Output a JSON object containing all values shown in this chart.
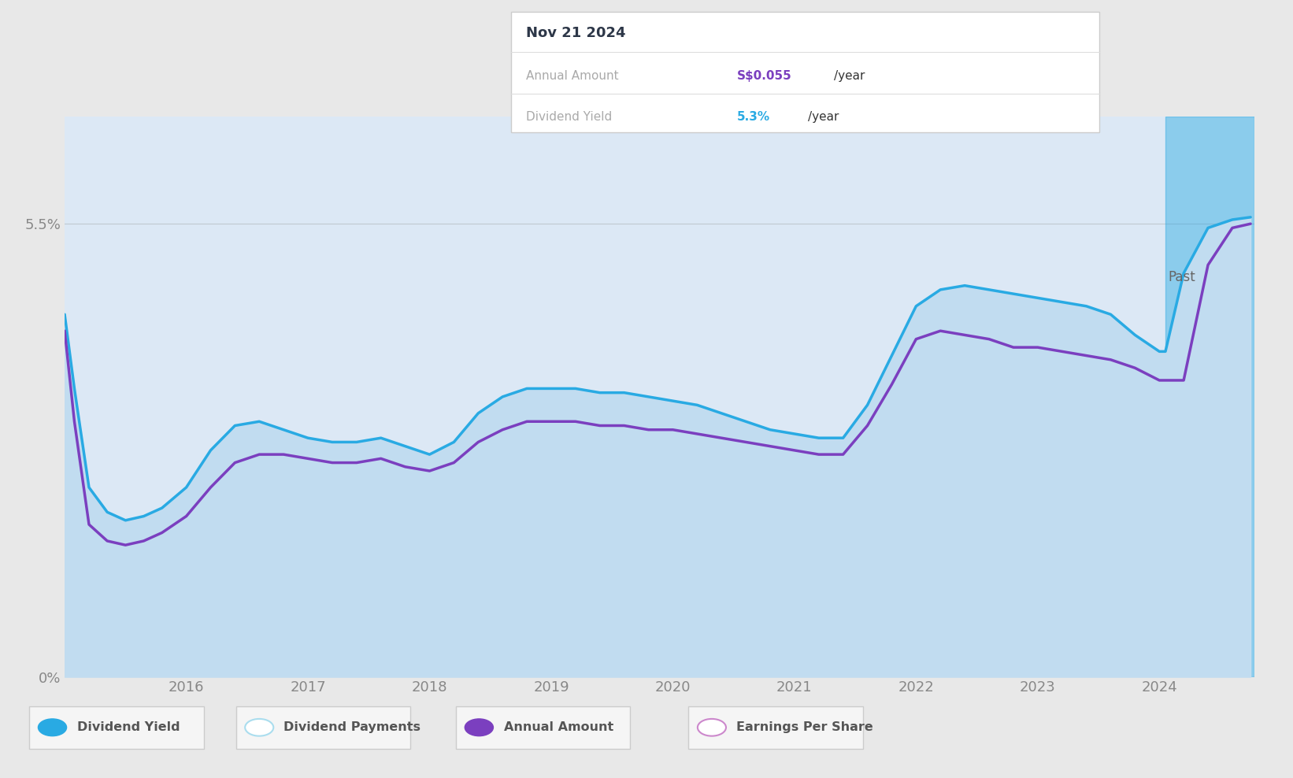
{
  "background_color": "#e8e8e8",
  "plot_bg_color": "#dce8f5",
  "ylim": [
    0,
    6.8
  ],
  "shaded_region_start": 2024.05,
  "past_label": "Past",
  "tooltip": {
    "date": "Nov 21 2024",
    "annual_amount_label": "Annual Amount",
    "annual_amount_value": "S$0.055",
    "annual_amount_suffix": "/year",
    "dividend_yield_label": "Dividend Yield",
    "dividend_yield_value": "5.3%",
    "dividend_yield_suffix": "/year",
    "annual_amount_color": "#7b3fbf",
    "dividend_yield_color": "#29aae3"
  },
  "dividend_yield_x": [
    2015.0,
    2015.08,
    2015.2,
    2015.35,
    2015.5,
    2015.65,
    2015.8,
    2016.0,
    2016.2,
    2016.4,
    2016.6,
    2016.8,
    2017.0,
    2017.2,
    2017.4,
    2017.6,
    2017.8,
    2018.0,
    2018.2,
    2018.4,
    2018.6,
    2018.8,
    2019.0,
    2019.2,
    2019.4,
    2019.6,
    2019.8,
    2020.0,
    2020.2,
    2020.4,
    2020.6,
    2020.8,
    2021.0,
    2021.2,
    2021.4,
    2021.6,
    2021.8,
    2022.0,
    2022.2,
    2022.4,
    2022.6,
    2022.8,
    2023.0,
    2023.2,
    2023.4,
    2023.6,
    2023.8,
    2024.0,
    2024.05,
    2024.2,
    2024.4,
    2024.6,
    2024.75
  ],
  "dividend_yield_y": [
    4.4,
    3.5,
    2.3,
    2.0,
    1.9,
    1.95,
    2.05,
    2.3,
    2.75,
    3.05,
    3.1,
    3.0,
    2.9,
    2.85,
    2.85,
    2.9,
    2.8,
    2.7,
    2.85,
    3.2,
    3.4,
    3.5,
    3.5,
    3.5,
    3.45,
    3.45,
    3.4,
    3.35,
    3.3,
    3.2,
    3.1,
    3.0,
    2.95,
    2.9,
    2.9,
    3.3,
    3.9,
    4.5,
    4.7,
    4.75,
    4.7,
    4.65,
    4.6,
    4.55,
    4.5,
    4.4,
    4.15,
    3.95,
    3.95,
    4.9,
    5.45,
    5.55,
    5.58
  ],
  "annual_amount_x": [
    2015.0,
    2015.08,
    2015.2,
    2015.35,
    2015.5,
    2015.65,
    2015.8,
    2016.0,
    2016.2,
    2016.4,
    2016.6,
    2016.8,
    2017.0,
    2017.2,
    2017.4,
    2017.6,
    2017.8,
    2018.0,
    2018.2,
    2018.4,
    2018.6,
    2018.8,
    2019.0,
    2019.2,
    2019.4,
    2019.6,
    2019.8,
    2020.0,
    2020.2,
    2020.4,
    2020.6,
    2020.8,
    2021.0,
    2021.2,
    2021.4,
    2021.6,
    2021.8,
    2022.0,
    2022.2,
    2022.4,
    2022.6,
    2022.8,
    2023.0,
    2023.2,
    2023.4,
    2023.6,
    2023.8,
    2024.0,
    2024.05,
    2024.2,
    2024.4,
    2024.6,
    2024.75
  ],
  "annual_amount_y": [
    4.2,
    3.1,
    1.85,
    1.65,
    1.6,
    1.65,
    1.75,
    1.95,
    2.3,
    2.6,
    2.7,
    2.7,
    2.65,
    2.6,
    2.6,
    2.65,
    2.55,
    2.5,
    2.6,
    2.85,
    3.0,
    3.1,
    3.1,
    3.1,
    3.05,
    3.05,
    3.0,
    3.0,
    2.95,
    2.9,
    2.85,
    2.8,
    2.75,
    2.7,
    2.7,
    3.05,
    3.55,
    4.1,
    4.2,
    4.15,
    4.1,
    4.0,
    4.0,
    3.95,
    3.9,
    3.85,
    3.75,
    3.6,
    3.6,
    3.6,
    5.0,
    5.45,
    5.5
  ],
  "blue_line_color": "#29aae3",
  "purple_line_color": "#7b3fbf",
  "fill_color_rgb": [
    193,
    220,
    240
  ],
  "legend": [
    {
      "label": "Dividend Yield",
      "color": "#29aae3",
      "filled": true
    },
    {
      "label": "Dividend Payments",
      "color": "#aaddee",
      "filled": false
    },
    {
      "label": "Annual Amount",
      "color": "#7b3fbf",
      "filled": true
    },
    {
      "label": "Earnings Per Share",
      "color": "#cc88cc",
      "filled": false
    }
  ],
  "xtick_labels": [
    "2016",
    "2017",
    "2018",
    "2019",
    "2020",
    "2021",
    "2022",
    "2023",
    "2024"
  ],
  "xtick_positions": [
    2016,
    2017,
    2018,
    2019,
    2020,
    2021,
    2022,
    2023,
    2024
  ]
}
